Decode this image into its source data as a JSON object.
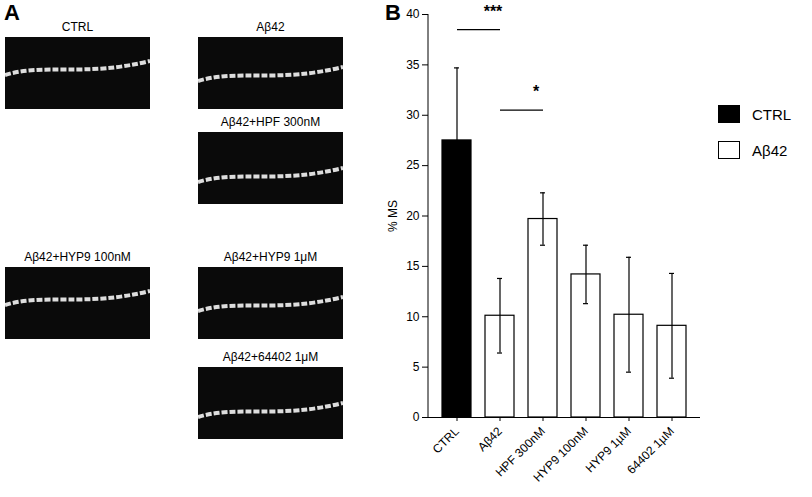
{
  "chart_data": {
    "type": "bar",
    "panel_label": "B",
    "categories": [
      "CTRL",
      "Aβ42",
      "HPF 300nM",
      "HYP9 100nM",
      "HYP9 1µM",
      "64402 1µM"
    ],
    "series": [
      {
        "name": "CTRL",
        "color": "#000000",
        "values": [
          27.5,
          null,
          null,
          null,
          null,
          null
        ],
        "errors": [
          7.2,
          null,
          null,
          null,
          null,
          null
        ]
      },
      {
        "name": "Aβ42",
        "color": "#ffffff",
        "values": [
          null,
          10.1,
          19.7,
          14.2,
          10.2,
          9.1
        ],
        "errors": [
          null,
          3.7,
          2.6,
          2.9,
          5.7,
          5.2
        ]
      }
    ],
    "y_label": "% MS",
    "ylim": [
      0,
      40
    ],
    "yticks": [
      0,
      5,
      10,
      15,
      20,
      25,
      30,
      35,
      40
    ],
    "grid": false,
    "legend": "right",
    "annotations": [
      {
        "text": "***",
        "from": "CTRL",
        "to": "Aβ42",
        "y": 38.5
      },
      {
        "text": "*",
        "from": "Aβ42",
        "to": "HPF 300nM",
        "y": 30.5
      }
    ]
  },
  "panel_a": {
    "panel_label": "A",
    "images": [
      "CTRL",
      "Aβ42",
      "Aβ42+HPF 300nM",
      "Aβ42+HYP9 100nM",
      "Aβ42+HYP9 1μM",
      "Aβ42+64402 1μM"
    ]
  }
}
